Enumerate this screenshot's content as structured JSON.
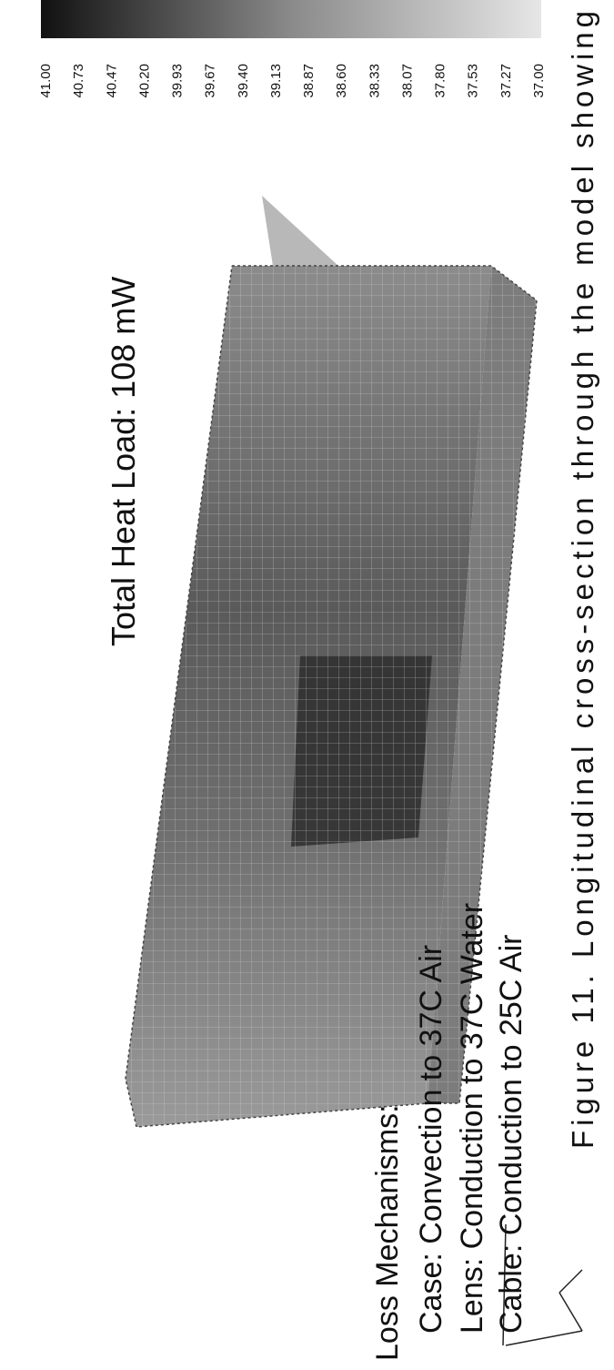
{
  "title": "Total Heat Load: 108 mW",
  "legend": {
    "labels": [
      "41.00",
      "40.73",
      "40.47",
      "40.20",
      "39.93",
      "39.67",
      "39.40",
      "39.13",
      "38.87",
      "38.60",
      "38.33",
      "38.07",
      "37.80",
      "37.53",
      "37.27",
      "37.00"
    ]
  },
  "loss_mechanisms": {
    "heading": "Loss Mechanisms:",
    "items": [
      "Case: Convection to 37C Air",
      "Lens: Conduction to 37C Water",
      "Cable: Conduction to 25C Air"
    ]
  },
  "caption": "Figure 11.  Longitudinal cross-section through the model showing"
}
